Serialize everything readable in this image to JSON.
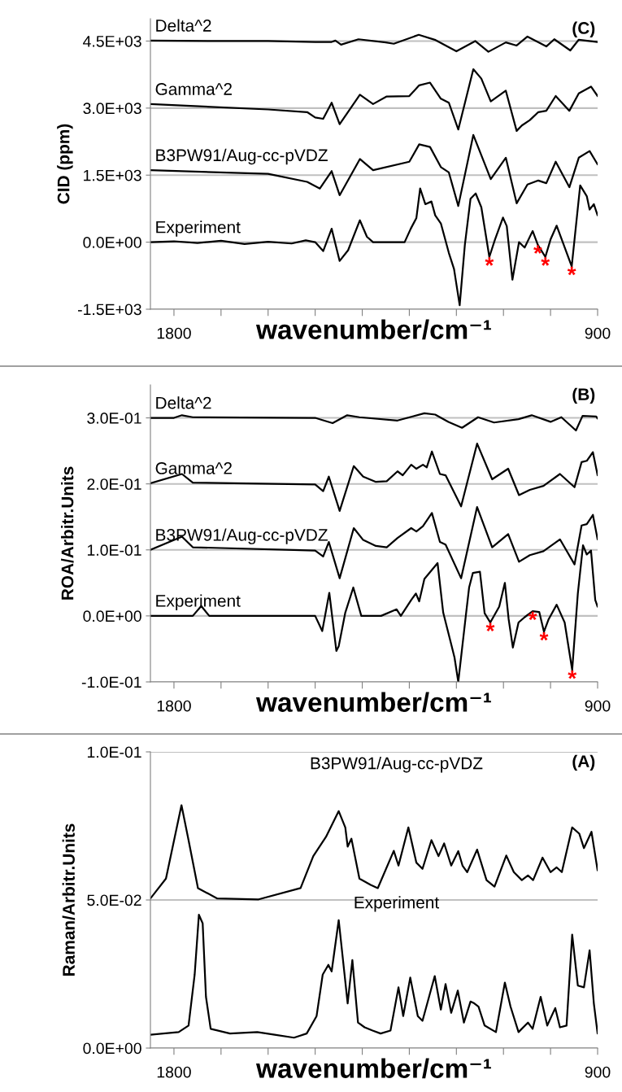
{
  "chart_data": [
    {
      "type": "line",
      "ylabel": "CID (ppm)",
      "xlabel": "wavenumber/cm⁻¹",
      "xlim": [
        1850,
        900
      ],
      "xticks": [
        1800,
        {
          "value": 1700,
          "label": null
        },
        {
          "value": 1600,
          "label": null
        },
        {
          "value": 1500,
          "label": null
        },
        {
          "value": 1400,
          "label": null
        },
        {
          "value": 1300,
          "label": null
        },
        {
          "value": 1200,
          "label": null
        },
        {
          "value": 1100,
          "label": null
        },
        {
          "value": 1000,
          "label": null
        },
        900
      ],
      "ylim": [
        -1500,
        5000
      ],
      "yticks": [
        {
          "value": -1500,
          "label": "-1.5E+03"
        },
        {
          "value": 0,
          "label": "0.0E+00"
        },
        {
          "value": 1500,
          "label": "1.5E+03"
        },
        {
          "value": 3000,
          "label": "3.0E+03"
        },
        {
          "value": 4500,
          "label": "4.5E+03"
        }
      ],
      "grid": "y",
      "annotations": [
        "(C)",
        {
          "text": "*",
          "x": 1130,
          "y": -330
        },
        {
          "text": "*",
          "x": 1027,
          "y": -60
        },
        {
          "text": "*",
          "x": 1011,
          "y": -330
        },
        {
          "text": "*",
          "x": 955,
          "y": -540
        }
      ],
      "series": [
        {
          "name": "Delta^2",
          "color": "#000000",
          "x": [
            1850,
            1700,
            1600,
            1500,
            1465,
            1457,
            1445,
            1408,
            1350,
            1333,
            1280,
            1246,
            1200,
            1160,
            1132,
            1095,
            1072,
            1049,
            1009,
            992,
            958,
            940,
            900
          ],
          "values": [
            4510,
            4500,
            4500,
            4480,
            4480,
            4510,
            4420,
            4540,
            4470,
            4440,
            4640,
            4530,
            4270,
            4500,
            4260,
            4470,
            4400,
            4600,
            4380,
            4540,
            4290,
            4530,
            4480
          ]
        },
        {
          "name": "Gamma^2",
          "color": "#000000",
          "x": [
            1850,
            1600,
            1517,
            1500,
            1483,
            1465,
            1448,
            1405,
            1377,
            1348,
            1300,
            1279,
            1256,
            1233,
            1216,
            1196,
            1164,
            1147,
            1127,
            1095,
            1072,
            1061,
            1044,
            1026,
            1009,
            989,
            960,
            940,
            914,
            900
          ],
          "values": [
            3090,
            2970,
            2910,
            2790,
            2760,
            3120,
            2640,
            3300,
            3090,
            3260,
            3270,
            3510,
            3570,
            3210,
            3120,
            2520,
            3870,
            3660,
            3150,
            3390,
            2490,
            2610,
            2730,
            2910,
            2940,
            3270,
            2940,
            3330,
            3480,
            3270
          ]
        },
        {
          "name": "B3PW91/Aug-cc-pVDZ",
          "color": "#000000",
          "x": [
            1850,
            1600,
            1517,
            1490,
            1465,
            1448,
            1405,
            1377,
            1300,
            1279,
            1256,
            1233,
            1216,
            1196,
            1164,
            1127,
            1095,
            1072,
            1049,
            1026,
            1009,
            989,
            960,
            940,
            917,
            900
          ],
          "values": [
            1610,
            1530,
            1350,
            1200,
            1590,
            1050,
            1860,
            1610,
            1800,
            2190,
            2130,
            1680,
            1560,
            810,
            2400,
            1410,
            1890,
            870,
            1290,
            1380,
            1320,
            1800,
            1230,
            1890,
            2040,
            1740
          ]
        },
        {
          "name": "Experiment",
          "color": "#000000",
          "x": [
            1850,
            1800,
            1750,
            1700,
            1650,
            1600,
            1550,
            1520,
            1500,
            1483,
            1465,
            1448,
            1430,
            1405,
            1390,
            1377,
            1310,
            1297,
            1285,
            1277,
            1266,
            1253,
            1245,
            1233,
            1216,
            1205,
            1193,
            1182,
            1170,
            1159,
            1147,
            1130,
            1118,
            1101,
            1093,
            1081,
            1067,
            1055,
            1038,
            1027,
            1011,
            1000,
            987,
            955,
            937,
            923,
            917,
            908,
            900
          ],
          "values": [
            0,
            20,
            -20,
            30,
            -40,
            10,
            -30,
            40,
            0,
            -200,
            300,
            -420,
            -180,
            490,
            120,
            0,
            0,
            300,
            540,
            1200,
            850,
            910,
            600,
            420,
            -240,
            -600,
            -1410,
            -60,
            970,
            1090,
            780,
            -330,
            60,
            550,
            360,
            -840,
            0,
            -120,
            250,
            -60,
            -330,
            60,
            370,
            -540,
            1270,
            1030,
            730,
            850,
            600
          ]
        }
      ]
    },
    {
      "type": "line",
      "ylabel": "ROA/Arbitr.Units",
      "xlabel": "wavenumber/cm⁻¹",
      "xlim": [
        1850,
        900
      ],
      "xticks": [
        1800,
        {
          "value": 1700,
          "label": null
        },
        {
          "value": 1600,
          "label": null
        },
        {
          "value": 1500,
          "label": null
        },
        {
          "value": 1400,
          "label": null
        },
        {
          "value": 1300,
          "label": null
        },
        {
          "value": 1200,
          "label": null
        },
        {
          "value": 1100,
          "label": null
        },
        {
          "value": 1000,
          "label": null
        },
        900
      ],
      "ylim": [
        -0.1,
        0.35
      ],
      "yticks": [
        {
          "value": -0.1,
          "label": "-1.0E-01"
        },
        {
          "value": 0,
          "label": "0.0E+00"
        },
        {
          "value": 0.1,
          "label": "1.0E-01"
        },
        {
          "value": 0.2,
          "label": "2.0E-01"
        },
        {
          "value": 0.3,
          "label": "3.0E-01"
        }
      ],
      "grid": "y",
      "annotations": [
        "(B)",
        {
          "text": "*",
          "x": 1128,
          "y": -0.01
        },
        {
          "text": "*",
          "x": 1038,
          "y": 0.007
        },
        {
          "text": "*",
          "x": 1014,
          "y": -0.024
        },
        {
          "text": "*",
          "x": 954,
          "y": -0.082
        }
      ],
      "series": [
        {
          "name": "Delta^2",
          "color": "#000000",
          "x": [
            1850,
            1800,
            1783,
            1760,
            1500,
            1486,
            1463,
            1432,
            1406,
            1325,
            1268,
            1245,
            1217,
            1188,
            1154,
            1120,
            1068,
            1040,
            1000,
            977,
            946,
            932,
            903,
            900
          ],
          "values": [
            0.3,
            0.3,
            0.304,
            0.301,
            0.3,
            0.297,
            0.292,
            0.304,
            0.301,
            0.296,
            0.307,
            0.305,
            0.294,
            0.285,
            0.301,
            0.293,
            0.298,
            0.304,
            0.294,
            0.301,
            0.281,
            0.303,
            0.302,
            0.299
          ]
        },
        {
          "name": "Gamma^2",
          "color": "#000000",
          "x": [
            1850,
            1783,
            1760,
            1500,
            1483,
            1471,
            1448,
            1418,
            1398,
            1371,
            1348,
            1325,
            1314,
            1296,
            1285,
            1271,
            1263,
            1252,
            1235,
            1223,
            1190,
            1156,
            1124,
            1090,
            1067,
            1044,
            1015,
            980,
            949,
            934,
            923,
            910,
            900
          ],
          "values": [
            0.201,
            0.215,
            0.202,
            0.199,
            0.189,
            0.211,
            0.159,
            0.227,
            0.211,
            0.203,
            0.204,
            0.219,
            0.213,
            0.229,
            0.223,
            0.229,
            0.225,
            0.249,
            0.215,
            0.213,
            0.166,
            0.261,
            0.207,
            0.223,
            0.183,
            0.191,
            0.197,
            0.215,
            0.195,
            0.233,
            0.235,
            0.248,
            0.213
          ]
        },
        {
          "name": "B3PW91/Aug-cc-pVDZ",
          "color": "#000000",
          "x": [
            1850,
            1783,
            1760,
            1500,
            1483,
            1471,
            1448,
            1418,
            1398,
            1371,
            1348,
            1325,
            1296,
            1285,
            1271,
            1252,
            1235,
            1223,
            1190,
            1156,
            1124,
            1090,
            1067,
            1044,
            1015,
            980,
            949,
            934,
            923,
            910,
            900
          ],
          "values": [
            0.1,
            0.12,
            0.104,
            0.099,
            0.09,
            0.112,
            0.057,
            0.133,
            0.115,
            0.106,
            0.104,
            0.118,
            0.133,
            0.128,
            0.136,
            0.156,
            0.112,
            0.108,
            0.057,
            0.165,
            0.104,
            0.124,
            0.082,
            0.092,
            0.098,
            0.116,
            0.078,
            0.137,
            0.139,
            0.153,
            0.116
          ]
        },
        {
          "name": "Experiment",
          "color": "#000000",
          "x": [
            1850,
            1760,
            1742,
            1725,
            1500,
            1485,
            1470,
            1455,
            1450,
            1436,
            1419,
            1402,
            1360,
            1327,
            1318,
            1296,
            1286,
            1279,
            1268,
            1240,
            1228,
            1211,
            1204,
            1196,
            1180,
            1173,
            1165,
            1150,
            1140,
            1128,
            1109,
            1097,
            1089,
            1080,
            1068,
            1055,
            1038,
            1024,
            1014,
            1004,
            987,
            970,
            954,
            942,
            931,
            923,
            914,
            905,
            900
          ],
          "values": [
            0,
            0,
            0.015,
            0,
            0,
            -0.023,
            0.035,
            -0.053,
            -0.046,
            0.005,
            0.043,
            0,
            0,
            0.01,
            0,
            0.024,
            0.034,
            0.022,
            0.056,
            0.08,
            0.005,
            -0.043,
            -0.063,
            -0.1,
            0,
            0.043,
            0.065,
            0.067,
            0.004,
            -0.01,
            0.014,
            0.05,
            -0.005,
            -0.048,
            -0.01,
            -0.002,
            0.007,
            0.006,
            -0.024,
            -0.005,
            0.017,
            -0.01,
            -0.082,
            0.034,
            0.107,
            0.093,
            0.099,
            0.024,
            0.014
          ]
        }
      ]
    },
    {
      "type": "line",
      "ylabel": "Raman/Arbitr.Units",
      "xlabel": "wavenumber/cm⁻¹",
      "xlim": [
        1850,
        900
      ],
      "xticks": [
        1800,
        {
          "value": 1700,
          "label": null
        },
        {
          "value": 1600,
          "label": null
        },
        {
          "value": 1500,
          "label": null
        },
        {
          "value": 1400,
          "label": null
        },
        {
          "value": 1300,
          "label": null
        },
        {
          "value": 1200,
          "label": null
        },
        {
          "value": 1100,
          "label": null
        },
        {
          "value": 1000,
          "label": null
        },
        900
      ],
      "ylim": [
        0,
        0.1
      ],
      "yticks": [
        {
          "value": 0,
          "label": "0.0E+00"
        },
        {
          "value": 0.05,
          "label": "5.0E-02"
        },
        {
          "value": 0.1,
          "label": "1.0E-01"
        }
      ],
      "grid": "y",
      "annotations": [
        "(A)"
      ],
      "series": [
        {
          "name": "B3PW91/Aug-cc-pVDZ",
          "color": "#000000",
          "x": [
            1850,
            1817,
            1784,
            1769,
            1749,
            1708,
            1620,
            1531,
            1504,
            1477,
            1450,
            1436,
            1431,
            1423,
            1406,
            1382,
            1367,
            1333,
            1323,
            1302,
            1285,
            1272,
            1253,
            1238,
            1226,
            1211,
            1196,
            1187,
            1177,
            1156,
            1136,
            1119,
            1094,
            1078,
            1061,
            1048,
            1037,
            1017,
            1000,
            987,
            976,
            954,
            939,
            929,
            913,
            900
          ],
          "values": [
            0.0505,
            0.0572,
            0.082,
            0.0702,
            0.054,
            0.0505,
            0.0502,
            0.054,
            0.0648,
            0.0713,
            0.08,
            0.0745,
            0.068,
            0.0707,
            0.0572,
            0.0551,
            0.054,
            0.0666,
            0.0616,
            0.0745,
            0.0626,
            0.0605,
            0.0702,
            0.0648,
            0.0691,
            0.0616,
            0.0665,
            0.0616,
            0.0594,
            0.067,
            0.0567,
            0.0545,
            0.065,
            0.0594,
            0.0567,
            0.0583,
            0.0567,
            0.0643,
            0.0594,
            0.061,
            0.0594,
            0.0745,
            0.0724,
            0.0675,
            0.073,
            0.06
          ]
        },
        {
          "name": "Experiment",
          "color": "#000000",
          "x": [
            1850,
            1790,
            1769,
            1756,
            1747,
            1739,
            1732,
            1722,
            1681,
            1623,
            1586,
            1545,
            1518,
            1497,
            1484,
            1472,
            1465,
            1450,
            1431,
            1421,
            1409,
            1395,
            1378,
            1361,
            1340,
            1323,
            1313,
            1298,
            1282,
            1272,
            1246,
            1233,
            1223,
            1211,
            1197,
            1184,
            1170,
            1162,
            1153,
            1140,
            1116,
            1097,
            1085,
            1068,
            1048,
            1038,
            1021,
            1007,
            990,
            980,
            966,
            954,
            942,
            929,
            917,
            908,
            900
          ],
          "values": [
            0.0045,
            0.0054,
            0.0076,
            0.0248,
            0.045,
            0.0421,
            0.0173,
            0.0065,
            0.0049,
            0.0054,
            0.0045,
            0.0035,
            0.0049,
            0.0108,
            0.0248,
            0.0281,
            0.0259,
            0.0432,
            0.0151,
            0.0297,
            0.0086,
            0.007,
            0.0059,
            0.0049,
            0.0059,
            0.0205,
            0.0108,
            0.0238,
            0.0108,
            0.0092,
            0.0243,
            0.013,
            0.0216,
            0.0119,
            0.0194,
            0.0086,
            0.0157,
            0.0151,
            0.014,
            0.0076,
            0.0054,
            0.0221,
            0.014,
            0.0054,
            0.0086,
            0.0065,
            0.0173,
            0.0076,
            0.0135,
            0.007,
            0.0076,
            0.0383,
            0.0211,
            0.0205,
            0.033,
            0.0151,
            0.0049
          ]
        }
      ]
    }
  ]
}
